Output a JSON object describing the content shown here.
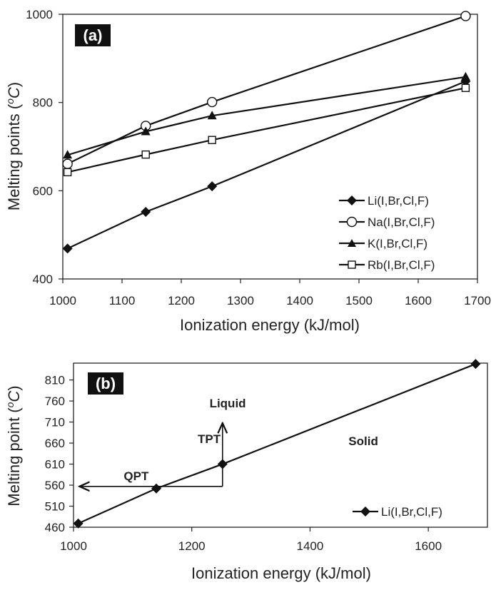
{
  "chart_data": [
    {
      "type": "line",
      "panel_label": "(a)",
      "xlabel": "Ionization energy (kJ/mol)",
      "ylabel": "Melting points (",
      "ylabel_unit_sup": "o",
      "ylabel_unit": "C",
      "ylabel_close": ")",
      "xlim": [
        1000,
        1700
      ],
      "ylim": [
        400,
        1000
      ],
      "xticks": [
        1000,
        1100,
        1200,
        1300,
        1400,
        1500,
        1600,
        1700
      ],
      "yticks": [
        400,
        600,
        800,
        1000
      ],
      "legend_position": "bottom-right",
      "series": [
        {
          "name": "Li(I,Br,Cl,F)",
          "marker": "filled-diamond",
          "x": [
            1008,
            1140,
            1252,
            1680
          ],
          "y": [
            469,
            552,
            610,
            848
          ]
        },
        {
          "name": "Na(I,Br,Cl,F)",
          "marker": "open-circle",
          "x": [
            1008,
            1140,
            1252,
            1680
          ],
          "y": [
            661,
            747,
            801,
            996
          ]
        },
        {
          "name": "K(I,Br,Cl,F)",
          "marker": "filled-triangle",
          "x": [
            1008,
            1140,
            1252,
            1680
          ],
          "y": [
            681,
            734,
            770,
            858
          ]
        },
        {
          "name": "Rb(I,Br,Cl,F)",
          "marker": "open-square",
          "x": [
            1008,
            1140,
            1252,
            1680
          ],
          "y": [
            642,
            682,
            715,
            833
          ]
        }
      ]
    },
    {
      "type": "line",
      "panel_label": "(b)",
      "xlabel": "Ionization energy (kJ/mol)",
      "ylabel": "Melting point (",
      "ylabel_unit_sup": "o",
      "ylabel_unit": "C",
      "ylabel_close": ")",
      "xlim": [
        1000,
        1700
      ],
      "ylim": [
        460,
        850
      ],
      "xticks": [
        1000,
        1200,
        1400,
        1600
      ],
      "yticks": [
        460,
        510,
        560,
        610,
        660,
        710,
        760,
        810
      ],
      "legend_position": "bottom-right",
      "series": [
        {
          "name": "Li(I,Br,Cl,F)",
          "marker": "filled-diamond",
          "x": [
            1008,
            1140,
            1252,
            1680
          ],
          "y": [
            469,
            552,
            610,
            848
          ]
        }
      ],
      "annotations": [
        {
          "text": "Liquid",
          "x": 1230,
          "y": 745
        },
        {
          "text": "Solid",
          "x": 1465,
          "y": 655
        },
        {
          "text": "TPT",
          "x": 1210,
          "y": 660
        },
        {
          "text": "QPT",
          "x": 1085,
          "y": 572
        }
      ],
      "arrows": [
        {
          "name": "QPT",
          "from": [
            1252,
            557
          ],
          "to": [
            1012,
            557
          ]
        },
        {
          "name": "TPT",
          "from": [
            1252,
            557
          ],
          "to": [
            1252,
            705
          ]
        }
      ]
    }
  ]
}
